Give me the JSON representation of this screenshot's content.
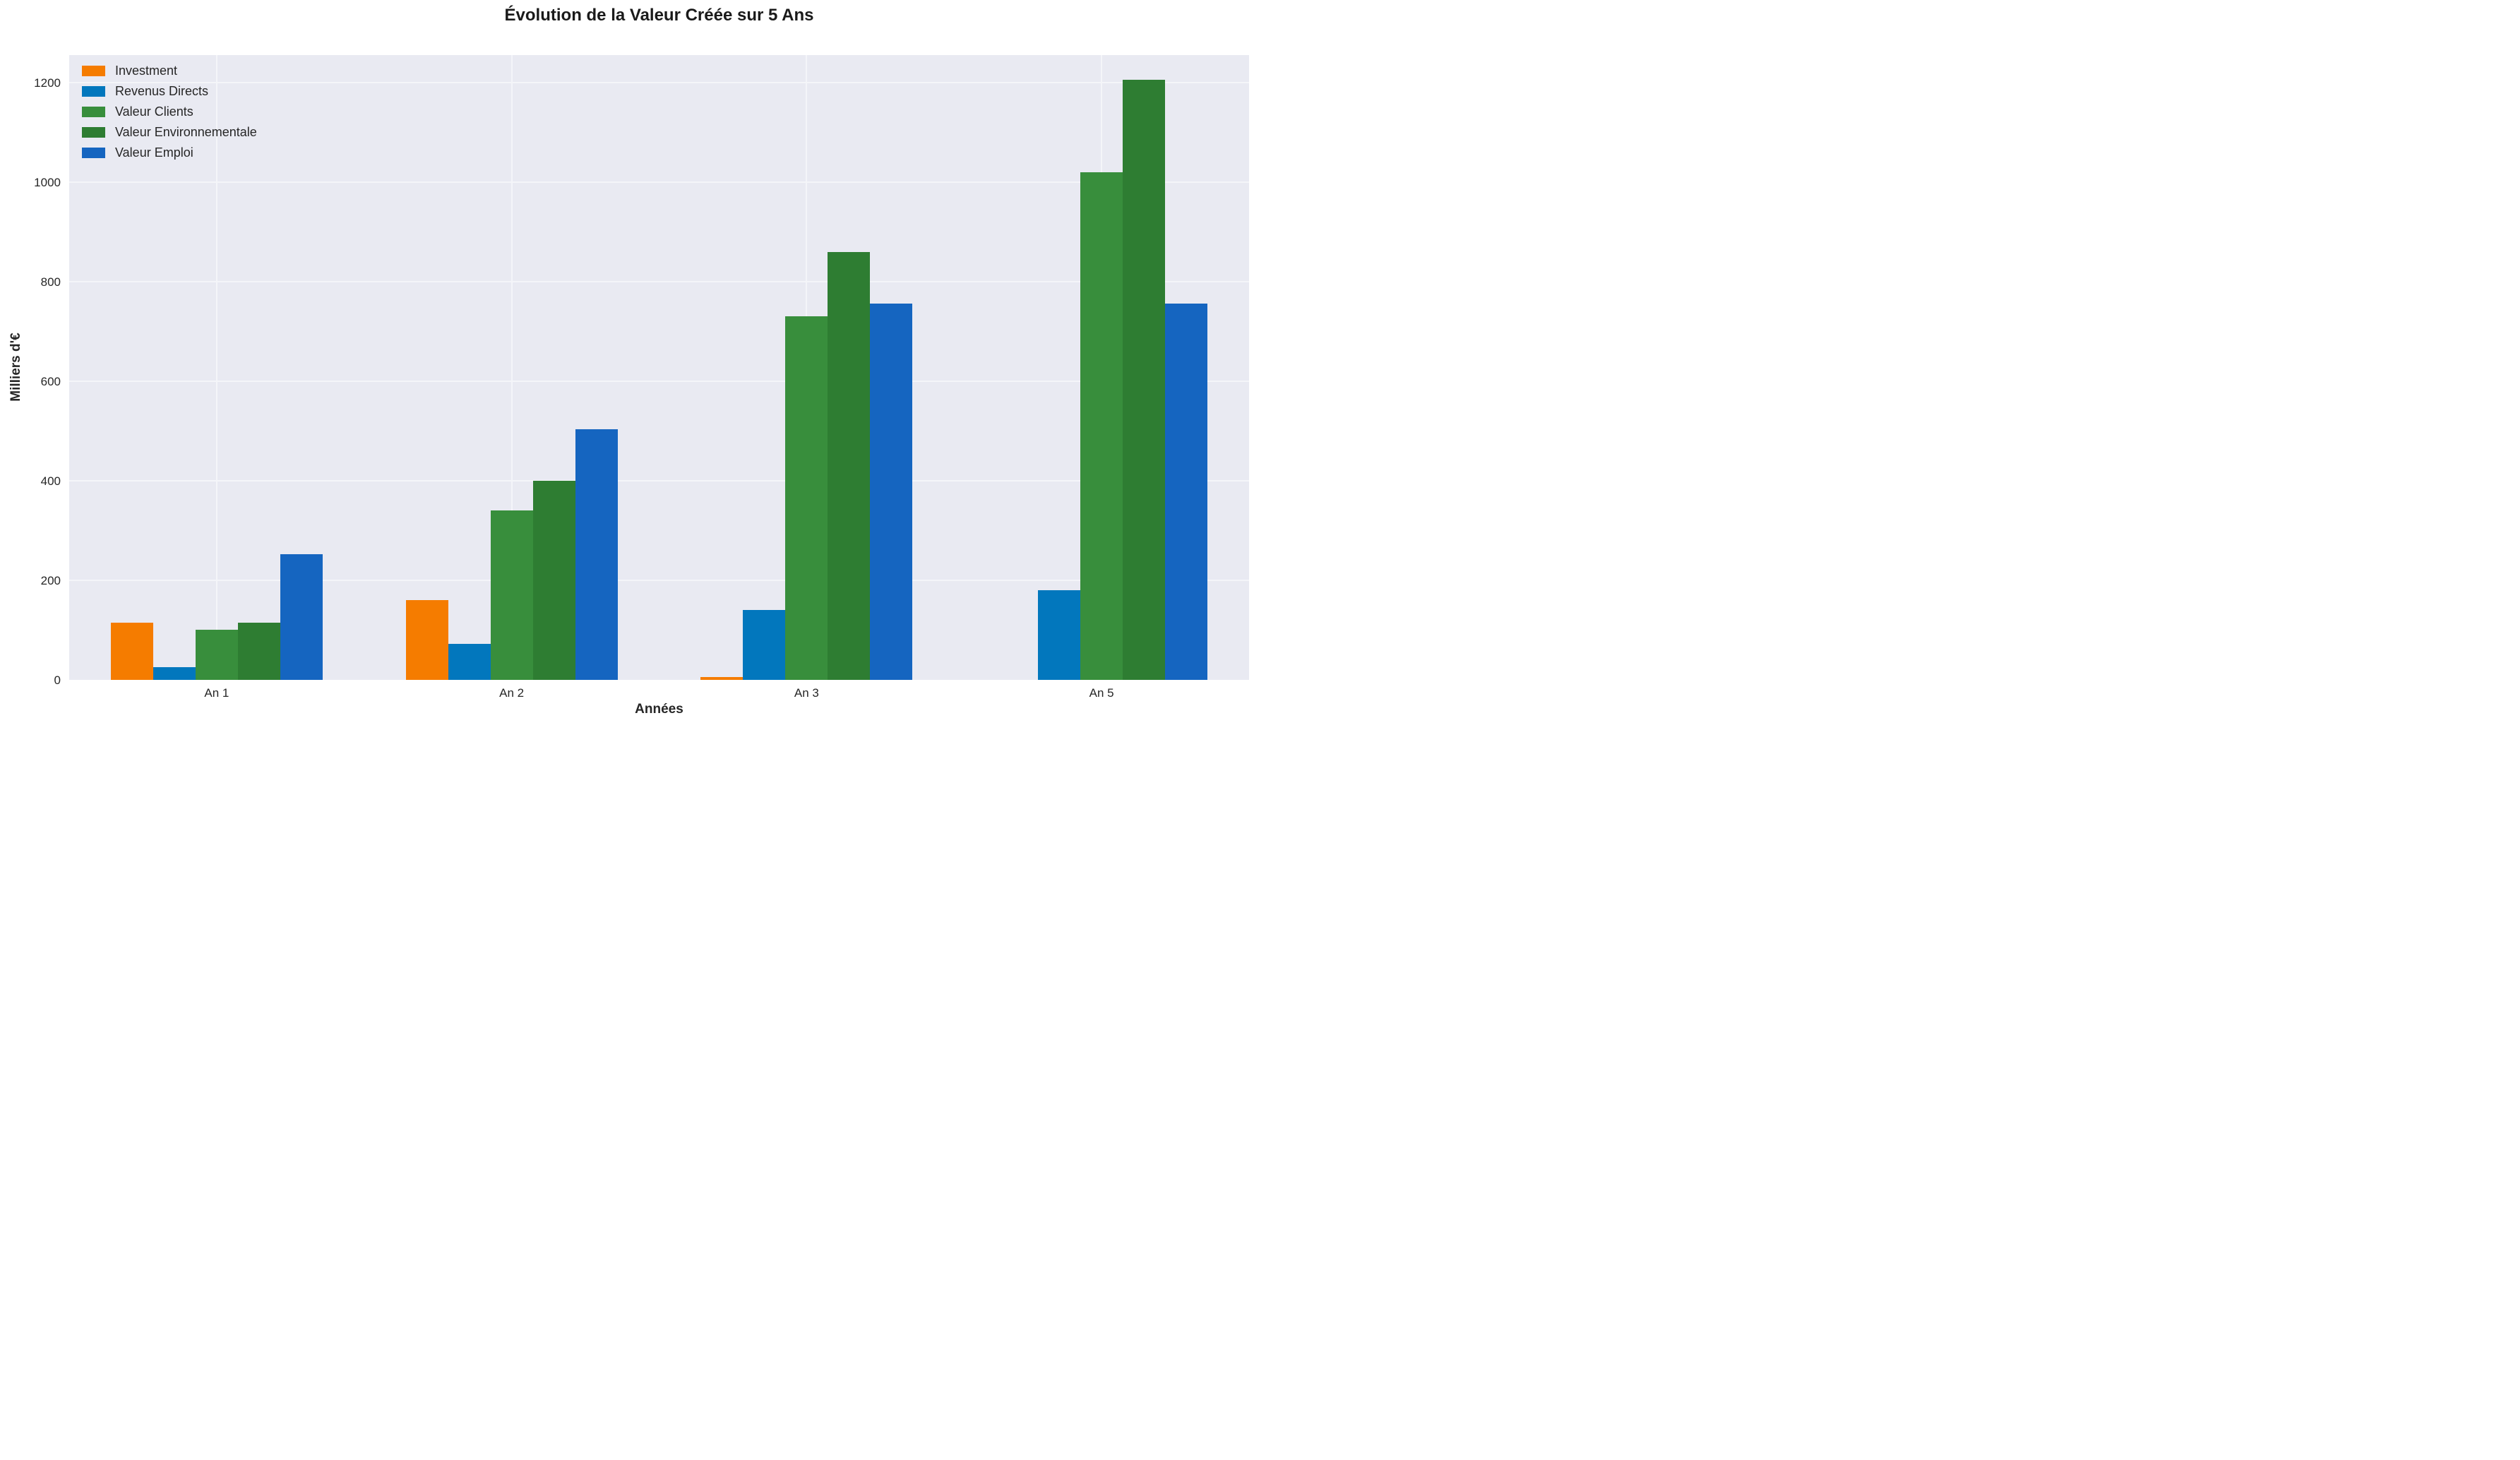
{
  "title": "Évolution de la Valeur Créée sur 5 Ans",
  "chart_data": {
    "type": "bar",
    "title": "Évolution de la Valeur Créée sur 5 Ans",
    "xlabel": "Années",
    "ylabel": "Milliers d'€",
    "categories": [
      "An 1",
      "An 2",
      "An 3",
      "An 5"
    ],
    "series": [
      {
        "name": "Investment",
        "color": "#F57C00",
        "values": [
          115,
          160,
          5,
          0
        ]
      },
      {
        "name": "Revenus Directs",
        "color": "#0277BD",
        "values": [
          25,
          72,
          140,
          180
        ]
      },
      {
        "name": "Valeur Clients",
        "color": "#388E3C",
        "values": [
          100,
          340,
          730,
          1020
        ]
      },
      {
        "name": "Valeur Environnementale",
        "color": "#2E7D32",
        "values": [
          115,
          400,
          860,
          1205
        ]
      },
      {
        "name": "Valeur Emploi",
        "color": "#1565C0",
        "values": [
          252,
          504,
          756,
          756
        ]
      }
    ],
    "ylim": [
      0,
      1255
    ],
    "yticks": [
      0,
      200,
      400,
      600,
      800,
      1000,
      1200
    ],
    "grid": true,
    "legend_position": "upper left",
    "plot_bg_color": "#E9EAF2",
    "grid_color": "#F4F5F9",
    "text_color": "#262626"
  }
}
